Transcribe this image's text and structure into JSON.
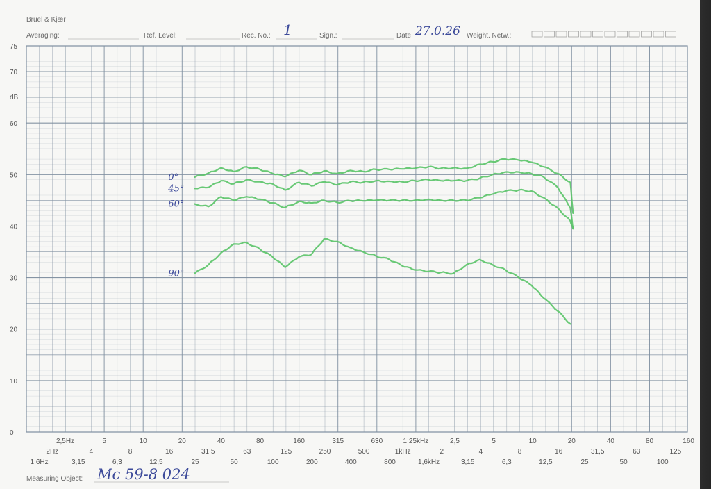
{
  "header": {
    "brand": "Brüel & Kjær",
    "averaging_label": "Averaging:",
    "ref_level_label": "Ref. Level:",
    "rec_no_label": "Rec. No.:",
    "rec_no_value": "1",
    "sign_label": "Sign.:",
    "date_label": "Date:",
    "date_value": "27.0.26",
    "weight_label": "Weight. Netw.:"
  },
  "footer": {
    "measuring_object_label": "Measuring Object:",
    "measuring_object_value": "Mc 59-8  024"
  },
  "colors": {
    "trace": "#5cc46a",
    "grid": "#7f8fa0",
    "hand_ink": "#3c4a9a"
  },
  "chart_data": {
    "type": "line",
    "ylabel": "dB",
    "ylim": [
      0,
      75
    ],
    "y_ticks": [
      "0",
      "10",
      "20",
      "30",
      "40",
      "50",
      "60",
      "70",
      "75"
    ],
    "x_scale": "log",
    "x_tick_rows": [
      [
        "2,5Hz",
        "5",
        "10",
        "20",
        "40",
        "80",
        "160",
        "315",
        "630",
        "1,25kHz",
        "2,5",
        "5",
        "10",
        "20",
        "40",
        "80",
        "160"
      ],
      [
        "2Hz",
        "4",
        "8",
        "16",
        "31,5",
        "63",
        "125",
        "250",
        "500",
        "1kHz",
        "2",
        "4",
        "8",
        "16",
        "31,5",
        "63",
        "125"
      ],
      [
        "1,6Hz",
        "3,15",
        "6,3",
        "12,5",
        "25",
        "50",
        "100",
        "200",
        "400",
        "800",
        "1,6kHz",
        "3,15",
        "6,3",
        "12,5",
        "25",
        "50",
        "100"
      ]
    ],
    "series": [
      {
        "name": "0°",
        "x": [
          25,
          32,
          40,
          50,
          63,
          80,
          100,
          125,
          160,
          200,
          250,
          315,
          400,
          500,
          630,
          800,
          1000,
          1250,
          1600,
          2000,
          2500,
          3150,
          4000,
          5000,
          6300,
          8000,
          10000,
          12500,
          16000,
          20000,
          21000
        ],
        "values": [
          49.5,
          50.3,
          51.3,
          50.6,
          51.5,
          51.0,
          50.2,
          49.6,
          50.8,
          50.0,
          50.7,
          50.2,
          50.8,
          50.6,
          51.0,
          51.0,
          51.1,
          51.2,
          51.5,
          51.2,
          51.3,
          51.2,
          52.0,
          52.5,
          53.0,
          52.8,
          52.4,
          51.5,
          50.2,
          48.5,
          42.5
        ]
      },
      {
        "name": "45°",
        "x": [
          25,
          32,
          40,
          50,
          63,
          80,
          100,
          125,
          160,
          200,
          250,
          315,
          400,
          500,
          630,
          800,
          1000,
          1250,
          1600,
          2000,
          2500,
          3150,
          4000,
          5000,
          6300,
          8000,
          10000,
          12500,
          16000,
          20000,
          21000
        ],
        "values": [
          47.3,
          47.5,
          48.8,
          48.2,
          49.0,
          48.6,
          48.2,
          47.0,
          48.5,
          47.8,
          48.6,
          48.0,
          48.6,
          48.5,
          48.8,
          48.7,
          48.6,
          48.8,
          49.0,
          48.8,
          48.8,
          48.8,
          49.3,
          50.0,
          50.5,
          50.5,
          50.2,
          49.5,
          47.5,
          43.5,
          39.5
        ]
      },
      {
        "name": "60°",
        "x": [
          25,
          32,
          40,
          50,
          63,
          80,
          100,
          125,
          160,
          200,
          250,
          315,
          400,
          500,
          630,
          800,
          1000,
          1250,
          1600,
          2000,
          2500,
          3150,
          4000,
          5000,
          6300,
          8000,
          10000,
          12500,
          16000,
          20000,
          21000
        ],
        "values": [
          44.3,
          43.8,
          45.7,
          45.0,
          45.7,
          45.2,
          44.5,
          43.6,
          44.8,
          44.5,
          45.0,
          44.6,
          44.9,
          44.9,
          45.0,
          45.0,
          45.0,
          45.0,
          45.2,
          45.0,
          45.0,
          45.0,
          45.5,
          46.2,
          46.8,
          47.0,
          46.8,
          45.5,
          43.5,
          41.0,
          39.5
        ]
      },
      {
        "name": "90°",
        "x": [
          25,
          32,
          40,
          50,
          63,
          80,
          100,
          125,
          160,
          200,
          250,
          315,
          400,
          500,
          630,
          800,
          1000,
          1250,
          1600,
          2000,
          2500,
          3150,
          4000,
          5000,
          6300,
          8000,
          10000,
          12500,
          16000,
          20000
        ],
        "values": [
          30.8,
          32.5,
          34.8,
          36.5,
          36.8,
          35.5,
          34.0,
          32.0,
          34.0,
          34.5,
          37.5,
          37.0,
          35.8,
          35.0,
          34.2,
          33.5,
          32.3,
          31.5,
          31.2,
          31.0,
          30.8,
          32.5,
          33.5,
          32.5,
          31.5,
          30.0,
          28.5,
          26.0,
          23.5,
          21.0
        ]
      }
    ],
    "grid": true
  }
}
